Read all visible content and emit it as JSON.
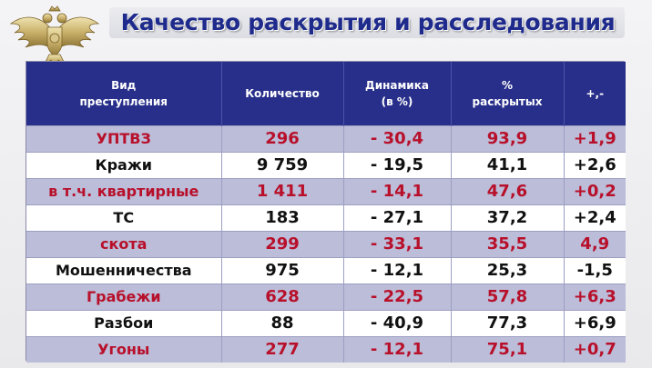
{
  "title": "Качество раскрытия и расследования",
  "emblem": {
    "icon": "double-headed-eagle-icon"
  },
  "colors": {
    "title": "#1e2a8c",
    "header_bg": "#282f8a",
    "highlight_row_bg": "#bbbdd9",
    "highlight_text": "#b8102a",
    "plain_text": "#111111"
  },
  "table": {
    "headers": [
      [
        "Вид",
        "преступления"
      ],
      [
        "Количество"
      ],
      [
        "Динамика",
        "(в %)"
      ],
      [
        "%",
        "раскрытых"
      ],
      [
        "+,-"
      ]
    ],
    "rows": [
      {
        "highlight": true,
        "cells": [
          "УПТВЗ",
          "296",
          "- 30,4",
          "93,9",
          "+1,9"
        ]
      },
      {
        "highlight": false,
        "cells": [
          "Кражи",
          "9 759",
          "- 19,5",
          "41,1",
          "+2,6"
        ]
      },
      {
        "highlight": true,
        "cells": [
          "в т.ч. квартирные",
          "1 411",
          "- 14,1",
          "47,6",
          "+0,2"
        ]
      },
      {
        "highlight": false,
        "cells": [
          "ТС",
          "183",
          "- 27,1",
          "37,2",
          "+2,4"
        ]
      },
      {
        "highlight": true,
        "cells": [
          "скота",
          "299",
          "- 33,1",
          "35,5",
          "4,9"
        ]
      },
      {
        "highlight": false,
        "cells": [
          "Мошенничества",
          "975",
          "- 12,1",
          "25,3",
          "-1,5"
        ]
      },
      {
        "highlight": true,
        "cells": [
          "Грабежи",
          "628",
          "- 22,5",
          "57,8",
          "+6,3"
        ]
      },
      {
        "highlight": false,
        "cells": [
          "Разбои",
          "88",
          "- 40,9",
          "77,3",
          "+6,9"
        ]
      },
      {
        "highlight": true,
        "cells": [
          "Угоны",
          "277",
          "- 12,1",
          "75,1",
          "+0,7"
        ]
      }
    ]
  }
}
